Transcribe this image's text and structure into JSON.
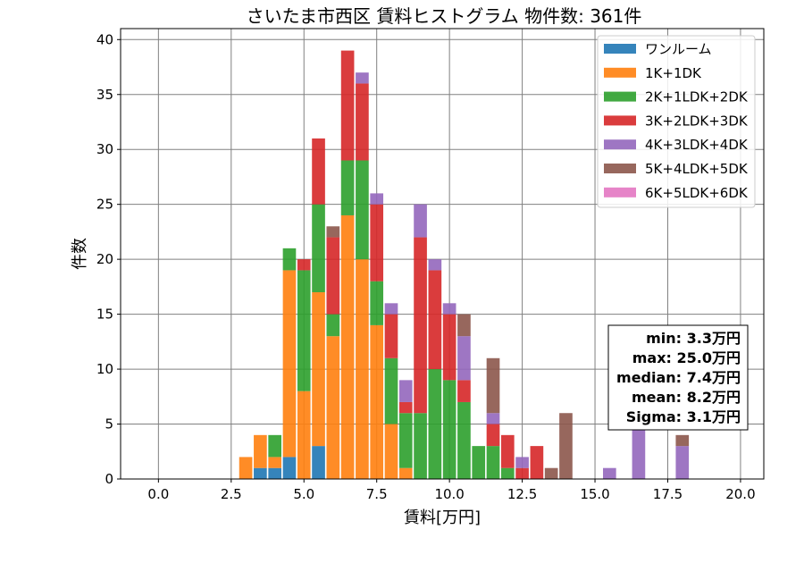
{
  "chart_data": {
    "type": "bar",
    "stacked": true,
    "title": "さいたま市西区 賃料ヒストグラム 物件数: 361件",
    "xlabel": "賃料[万円]",
    "ylabel": "件数",
    "xlim": [
      -1.3,
      20.8
    ],
    "ylim": [
      0,
      41
    ],
    "xticks": [
      0.0,
      2.5,
      5.0,
      7.5,
      10.0,
      12.5,
      15.0,
      17.5,
      20.0
    ],
    "xtick_labels": [
      "0.0",
      "2.5",
      "5.0",
      "7.5",
      "10.0",
      "12.5",
      "15.0",
      "17.5",
      "20.0"
    ],
    "yticks": [
      0,
      5,
      10,
      15,
      20,
      25,
      30,
      35,
      40
    ],
    "ytick_labels": [
      "0",
      "5",
      "10",
      "15",
      "20",
      "25",
      "30",
      "35",
      "40"
    ],
    "grid": true,
    "legend_position": "top-right",
    "bin_width": 0.5,
    "bins": [
      3.0,
      3.5,
      4.0,
      4.5,
      5.0,
      5.5,
      6.0,
      6.5,
      7.0,
      7.5,
      8.0,
      8.5,
      9.0,
      9.5,
      10.0,
      10.5,
      11.0,
      11.5,
      12.0,
      12.5,
      13.0,
      13.5,
      14.0,
      15.5,
      16.5,
      18.0
    ],
    "series": [
      {
        "name": "ワンルーム",
        "color": "#1f77b4",
        "values": [
          0,
          1,
          1,
          2,
          0,
          3,
          0,
          0,
          0,
          0,
          0,
          0,
          0,
          0,
          0,
          0,
          0,
          0,
          0,
          0,
          0,
          0,
          0,
          0,
          0,
          0
        ]
      },
      {
        "name": "1K+1DK",
        "color": "#ff7f0e",
        "values": [
          2,
          3,
          1,
          17,
          8,
          14,
          13,
          24,
          20,
          14,
          5,
          1,
          0,
          0,
          0,
          0,
          0,
          0,
          0,
          0,
          0,
          0,
          0,
          0,
          0,
          0
        ]
      },
      {
        "name": "2K+1LDK+2DK",
        "color": "#2ca02c",
        "values": [
          0,
          0,
          2,
          2,
          11,
          8,
          2,
          5,
          9,
          4,
          6,
          5,
          6,
          10,
          9,
          7,
          3,
          3,
          1,
          0,
          0,
          0,
          0,
          0,
          0,
          0
        ]
      },
      {
        "name": "3K+2LDK+3DK",
        "color": "#d62728",
        "values": [
          0,
          0,
          0,
          0,
          1,
          6,
          7,
          10,
          7,
          7,
          4,
          1,
          16,
          9,
          6,
          2,
          0,
          2,
          3,
          1,
          3,
          0,
          0,
          0,
          0,
          0
        ]
      },
      {
        "name": "4K+3LDK+4DK",
        "color": "#9467bd",
        "values": [
          0,
          0,
          0,
          0,
          0,
          0,
          0,
          0,
          1,
          1,
          1,
          2,
          3,
          1,
          1,
          4,
          0,
          1,
          0,
          1,
          0,
          0,
          0,
          1,
          5,
          3
        ]
      },
      {
        "name": "5K+4LDK+5DK",
        "color": "#8c564b",
        "values": [
          0,
          0,
          0,
          0,
          0,
          0,
          1,
          0,
          0,
          0,
          0,
          0,
          0,
          0,
          0,
          2,
          0,
          5,
          0,
          0,
          0,
          1,
          6,
          0,
          0,
          1
        ]
      },
      {
        "name": "6K+5LDK+6DK",
        "color": "#e377c2",
        "values": [
          0,
          0,
          0,
          0,
          0,
          0,
          0,
          0,
          0,
          0,
          0,
          0,
          0,
          0,
          0,
          0,
          0,
          0,
          0,
          0,
          0,
          0,
          0,
          0,
          0,
          0
        ]
      }
    ],
    "stats": {
      "min": "min: 3.3万円",
      "max": "max: 25.0万円",
      "median": "median: 7.4万円",
      "mean": "mean: 8.2万円",
      "sigma": "Sigma: 3.1万円"
    }
  }
}
